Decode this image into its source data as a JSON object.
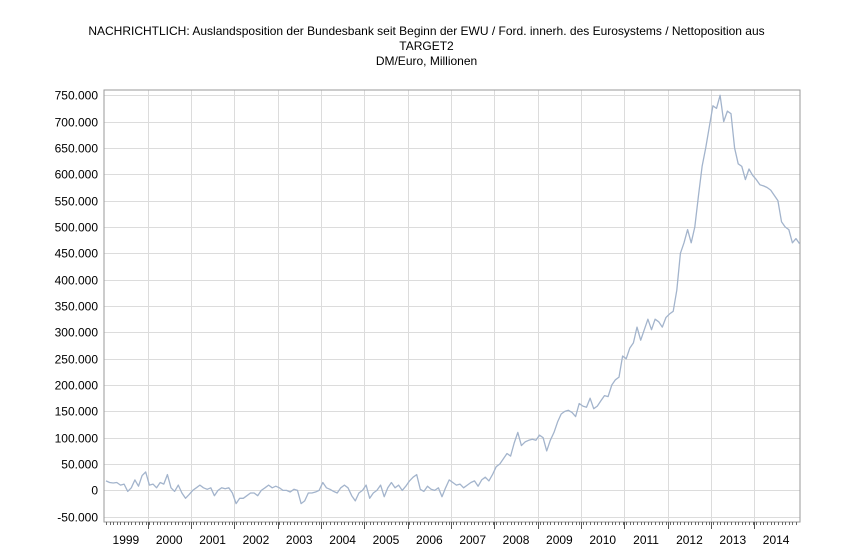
{
  "chart": {
    "title_line1": "NACHRICHTLICH: Auslandsposition der Bundesbank seit Beginn der EWU / Ford. innerh. des Eurosystems / Nettoposition aus",
    "title_line2": "TARGET2",
    "subtitle": "DM/Euro, Millionen"
  },
  "chart_data": {
    "type": "line",
    "title": "NACHRICHTLICH: Auslandsposition der Bundesbank seit Beginn der EWU / Ford. innerh. des Eurosystems / Nettoposition aus TARGET2",
    "subtitle": "DM/Euro, Millionen",
    "xlabel": "",
    "ylabel": "",
    "ylim": [
      -60000,
      760000
    ],
    "y_ticks": [
      -50000,
      0,
      50000,
      100000,
      150000,
      200000,
      250000,
      300000,
      350000,
      400000,
      450000,
      500000,
      550000,
      600000,
      650000,
      700000,
      750000
    ],
    "y_tick_labels": [
      "-50.000",
      "0",
      "50.000",
      "100.000",
      "150.000",
      "200.000",
      "250.000",
      "300.000",
      "350.000",
      "400.000",
      "450.000",
      "500.000",
      "550.000",
      "600.000",
      "650.000",
      "700.000",
      "750.000"
    ],
    "x_tick_labels": [
      "1999",
      "2000",
      "2001",
      "2002",
      "2003",
      "2004",
      "2005",
      "2006",
      "2007",
      "2008",
      "2009",
      "2010",
      "2011",
      "2012",
      "2013",
      "2014"
    ],
    "grid": true,
    "line_color": "#a3b4cc",
    "series": [
      {
        "start": "1999-01",
        "frequency": "monthly",
        "values": [
          18000,
          15000,
          14000,
          15000,
          10000,
          12000,
          -2000,
          5000,
          20000,
          8000,
          28000,
          35000,
          10000,
          12000,
          5000,
          15000,
          12000,
          30000,
          5000,
          -2000,
          10000,
          -5000,
          -15000,
          -8000,
          0,
          5000,
          10000,
          5000,
          2000,
          5000,
          -10000,
          0,
          5000,
          3000,
          5000,
          -5000,
          -25000,
          -15000,
          -15000,
          -10000,
          -5000,
          -5000,
          -10000,
          0,
          5000,
          10000,
          5000,
          8000,
          5000,
          0,
          0,
          -3000,
          2000,
          0,
          -25000,
          -20000,
          -5000,
          -5000,
          -3000,
          0,
          15000,
          5000,
          2000,
          -2000,
          -5000,
          5000,
          10000,
          5000,
          -10000,
          -20000,
          -5000,
          0,
          10000,
          -15000,
          -5000,
          0,
          10000,
          -12000,
          5000,
          15000,
          5000,
          10000,
          0,
          8000,
          18000,
          25000,
          30000,
          2000,
          -2000,
          8000,
          2000,
          0,
          5000,
          -12000,
          5000,
          20000,
          15000,
          10000,
          12000,
          5000,
          10000,
          15000,
          18000,
          8000,
          20000,
          25000,
          18000,
          30000,
          45000,
          50000,
          60000,
          70000,
          65000,
          90000,
          110000,
          85000,
          92000,
          95000,
          97000,
          95000,
          105000,
          100000,
          75000,
          95000,
          110000,
          130000,
          145000,
          150000,
          152000,
          148000,
          140000,
          165000,
          160000,
          158000,
          175000,
          155000,
          160000,
          170000,
          180000,
          178000,
          200000,
          210000,
          215000,
          255000,
          250000,
          270000,
          280000,
          310000,
          285000,
          305000,
          325000,
          305000,
          325000,
          320000,
          310000,
          328000,
          335000,
          340000,
          380000,
          450000,
          470000,
          495000,
          470000,
          500000,
          560000,
          615000,
          650000,
          690000,
          730000,
          725000,
          750000,
          700000,
          720000,
          715000,
          650000,
          620000,
          615000,
          590000,
          610000,
          598000,
          590000,
          580000,
          578000,
          575000,
          570000,
          560000,
          550000,
          510000,
          500000,
          495000,
          470000,
          478000,
          468000
        ]
      }
    ]
  }
}
